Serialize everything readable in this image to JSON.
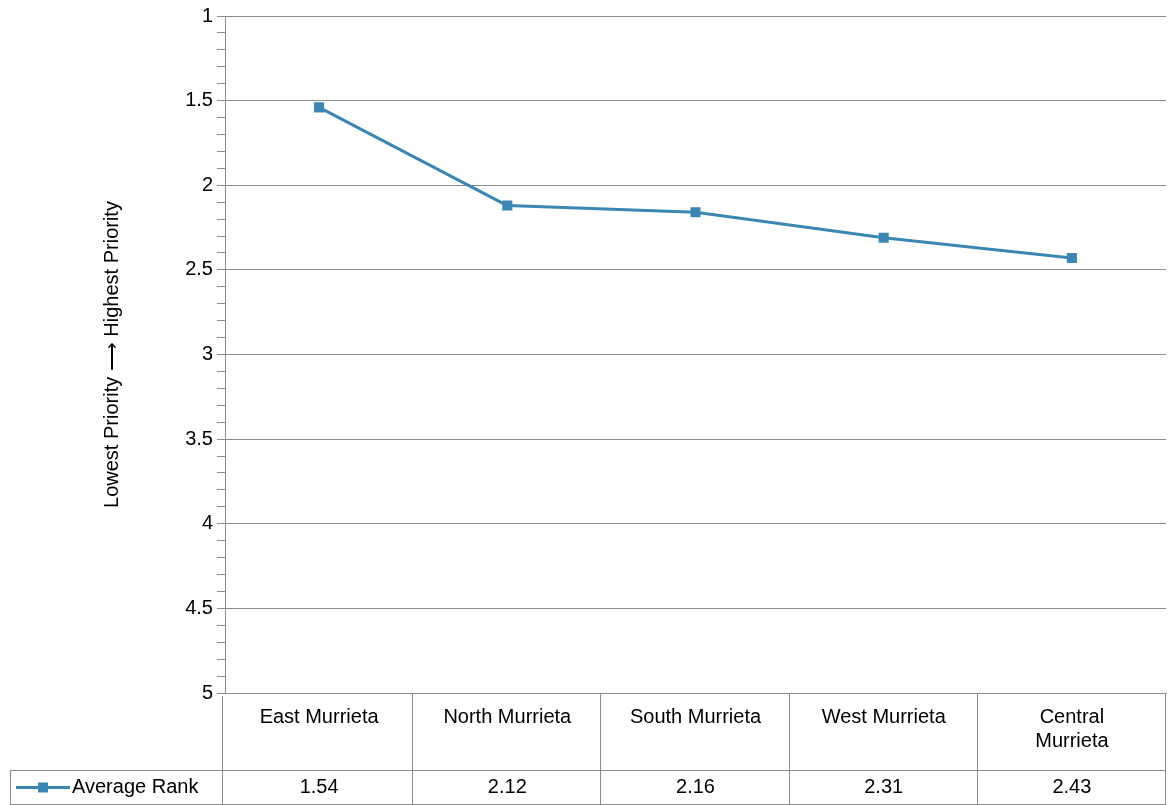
{
  "chart_data": {
    "type": "line",
    "ylabel": "Lowest Priority ⟶ Highest Priority",
    "categories": [
      "East Murrieta",
      "North Murrieta",
      "South Murrieta",
      "West Murrieta",
      "Central Murrieta"
    ],
    "series": [
      {
        "name": "Average Rank",
        "color": "#3b87b4",
        "values": [
          1.54,
          2.12,
          2.16,
          2.31,
          2.43
        ]
      }
    ],
    "ylim": [
      5,
      1
    ],
    "yticks": [
      1,
      {
        "value": 1.1,
        "label": null
      },
      {
        "value": 1.2,
        "label": null
      },
      {
        "value": 1.3,
        "label": null
      },
      {
        "value": 1.4,
        "label": null
      },
      1.5,
      {
        "value": 1.6,
        "label": null
      },
      {
        "value": 1.7,
        "label": null
      },
      {
        "value": 1.8,
        "label": null
      },
      {
        "value": 1.9,
        "label": null
      },
      2,
      {
        "value": 2.1,
        "label": null
      },
      {
        "value": 2.2,
        "label": null
      },
      {
        "value": 2.3,
        "label": null
      },
      {
        "value": 2.4,
        "label": null
      },
      2.5,
      {
        "value": 2.6,
        "label": null
      },
      {
        "value": 2.7,
        "label": null
      },
      {
        "value": 2.8,
        "label": null
      },
      {
        "value": 2.9,
        "label": null
      },
      3,
      {
        "value": 3.1,
        "label": null
      },
      {
        "value": 3.2,
        "label": null
      },
      {
        "value": 3.3,
        "label": null
      },
      {
        "value": 3.4,
        "label": null
      },
      3.5,
      {
        "value": 3.6,
        "label": null
      },
      {
        "value": 3.7,
        "label": null
      },
      {
        "value": 3.8,
        "label": null
      },
      {
        "value": 3.9,
        "label": null
      },
      4,
      {
        "value": 4.1,
        "label": null
      },
      {
        "value": 4.2,
        "label": null
      },
      {
        "value": 4.3,
        "label": null
      },
      {
        "value": 4.4,
        "label": null
      },
      4.5,
      {
        "value": 4.6,
        "label": null
      },
      {
        "value": 4.7,
        "label": null
      },
      {
        "value": 4.8,
        "label": null
      },
      {
        "value": 4.9,
        "label": null
      },
      5
    ],
    "grid": "y",
    "legend": "bottom",
    "marker": "square",
    "line_style": "solid",
    "data_labels": true
  }
}
